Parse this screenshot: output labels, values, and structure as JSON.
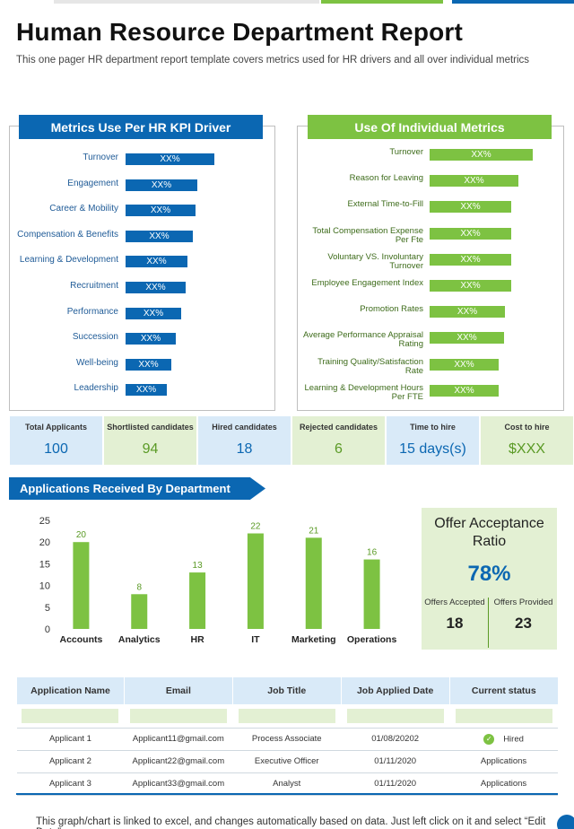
{
  "header": {
    "title": "Human Resource Department Report",
    "subtitle": "This one pager HR department report template covers metrics used for HR drivers and all over individual metrics"
  },
  "kpi_left": {
    "title": "Metrics Use Per HR KPI Driver",
    "items": [
      {
        "label": "Turnover",
        "value": "XX%",
        "fill": 0.62
      },
      {
        "label": "Engagement",
        "value": "XX%",
        "fill": 0.5
      },
      {
        "label": "Career & Mobility",
        "value": "XX%",
        "fill": 0.49
      },
      {
        "label": "Compensation & Benefits",
        "value": "XX%",
        "fill": 0.47
      },
      {
        "label": "Learning & Development",
        "value": "XX%",
        "fill": 0.43
      },
      {
        "label": "Recruitment",
        "value": "XX%",
        "fill": 0.42
      },
      {
        "label": "Performance",
        "value": "XX%",
        "fill": 0.39
      },
      {
        "label": "Succession",
        "value": "XX%",
        "fill": 0.35
      },
      {
        "label": "Well-being",
        "value": "XX%",
        "fill": 0.32
      },
      {
        "label": "Leadership",
        "value": "XX%",
        "fill": 0.29
      }
    ]
  },
  "kpi_right": {
    "title": "Use Of Individual Metrics",
    "items": [
      {
        "label": "Turnover",
        "value": "XX%",
        "fill": 0.82
      },
      {
        "label": "Reason for Leaving",
        "value": "XX%",
        "fill": 0.71
      },
      {
        "label": "External Time-to-Fill",
        "value": "XX%",
        "fill": 0.65
      },
      {
        "label": "Total Compensation Expense Per Fte",
        "value": "XX%",
        "fill": 0.65
      },
      {
        "label": "Voluntary VS. Involuntary Turnover",
        "value": "XX%",
        "fill": 0.65
      },
      {
        "label": "Employee Engagement Index",
        "value": "XX%",
        "fill": 0.65
      },
      {
        "label": "Promotion Rates",
        "value": "XX%",
        "fill": 0.6
      },
      {
        "label": "Average Performance Appraisal Rating",
        "value": "XX%",
        "fill": 0.59
      },
      {
        "label": "Training Quality/Satisfaction Rate",
        "value": "XX%",
        "fill": 0.55
      },
      {
        "label": "Learning & Development Hours Per FTE",
        "value": "XX%",
        "fill": 0.55
      }
    ]
  },
  "stats": [
    {
      "label": "Total Applicants",
      "value": "100",
      "color": "blue"
    },
    {
      "label": "Shortlisted candidates",
      "value": "94",
      "color": "green"
    },
    {
      "label": "Hired candidates",
      "value": "18",
      "color": "blue"
    },
    {
      "label": "Rejected candidates",
      "value": "6",
      "color": "green"
    },
    {
      "label": "Time to hire",
      "value": "15 days(s)",
      "color": "blue"
    },
    {
      "label": "Cost to hire",
      "value": "$XXX",
      "color": "green"
    }
  ],
  "section_title": "Applications Received By Department",
  "chart_data": {
    "type": "bar",
    "categories": [
      "Accounts",
      "Analytics",
      "HR",
      "IT",
      "Marketing",
      "Operations"
    ],
    "values": [
      20,
      8,
      13,
      22,
      21,
      16
    ],
    "ylim": [
      0,
      25
    ],
    "yticks": [
      0,
      5,
      10,
      15,
      20,
      25
    ],
    "grid": false,
    "color": "#7dc242"
  },
  "offer": {
    "title": "Offer Acceptance Ratio",
    "percent": "78%",
    "accepted_label": "Offers Accepted",
    "accepted_value": "18",
    "provided_label": "Offers Provided",
    "provided_value": "23"
  },
  "table": {
    "headers": [
      "Application Name",
      "Email",
      "Job Title",
      "Job Applied Date",
      "Current status"
    ],
    "rows": [
      [
        "Applicant 1",
        "Applicant11@gmail.com",
        "Process Associate",
        "01/08/20202",
        "Hired"
      ],
      [
        "Applicant 2",
        "Applicant22@gmail.com",
        "Executive Officer",
        "01/11/2020",
        "Applications"
      ],
      [
        "Applicant 3",
        "Applicant33@gmail.com",
        "Analyst",
        "01/11/2020",
        "Applications"
      ]
    ]
  },
  "footnote": "This graph/chart is linked to excel, and changes automatically based on data. Just left click on it and select “Edit Data”.",
  "colors": {
    "blue": "#0b67b2",
    "green": "#7dc242",
    "light_blue": "#d9eaf8",
    "light_green": "#e3f0d3"
  }
}
